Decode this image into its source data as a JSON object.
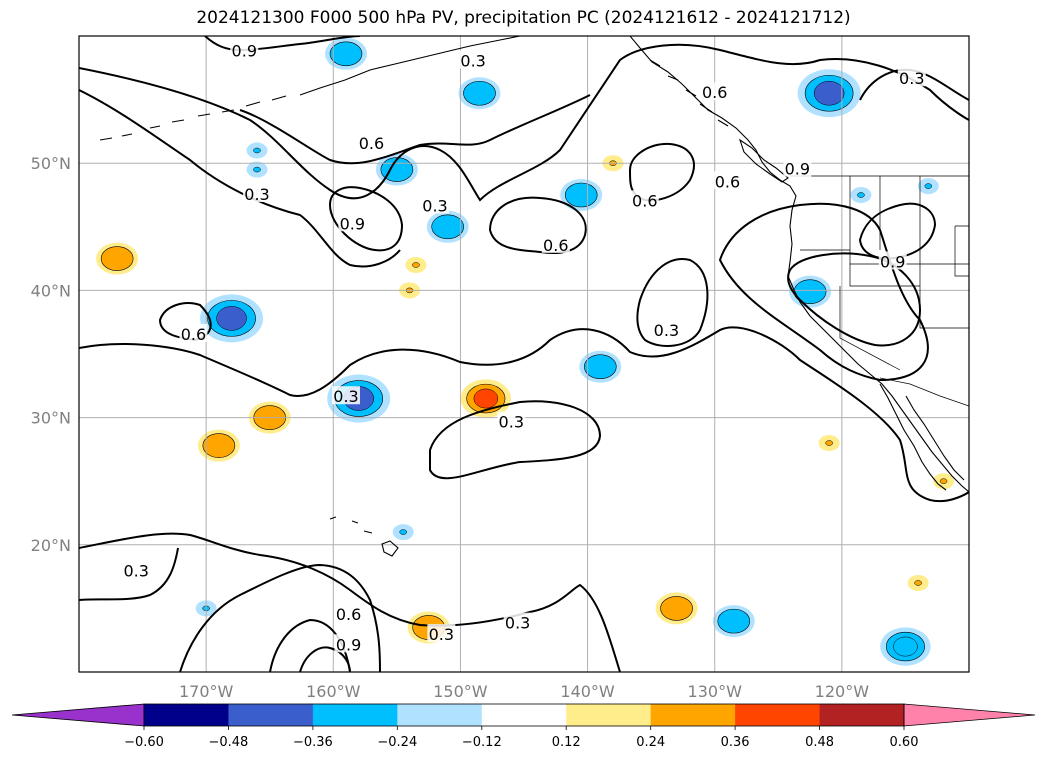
{
  "title": "2024121300 F000 500 hPa PV, precipitation PC (2024121612 - 2024121712)",
  "map": {
    "lon_range": [
      -180,
      -110
    ],
    "lat_range": [
      10,
      60
    ],
    "lat_labels": [
      "20°N",
      "30°N",
      "40°N",
      "50°N"
    ],
    "lon_labels": [
      "170°W",
      "160°W",
      "150°W",
      "140°W",
      "130°W",
      "120°W"
    ],
    "grid": true
  },
  "pv_contour_labels": [
    {
      "text": "0.9",
      "lon": -167,
      "lat": 58.8
    },
    {
      "text": "0.3",
      "lon": -149,
      "lat": 58
    },
    {
      "text": "0.6",
      "lon": -130,
      "lat": 55.5
    },
    {
      "text": "0.3",
      "lon": -114.5,
      "lat": 56.6
    },
    {
      "text": "0.6",
      "lon": -157,
      "lat": 51.5
    },
    {
      "text": "0.3",
      "lon": -166,
      "lat": 47.5
    },
    {
      "text": "0.9",
      "lon": -158.5,
      "lat": 45.2
    },
    {
      "text": "0.3",
      "lon": -152,
      "lat": 46.6
    },
    {
      "text": "0.6",
      "lon": -142.5,
      "lat": 43.5
    },
    {
      "text": "0.6",
      "lon": -135.5,
      "lat": 47
    },
    {
      "text": "0.6",
      "lon": -129,
      "lat": 48.5
    },
    {
      "text": "0.9",
      "lon": -123.5,
      "lat": 49.5
    },
    {
      "text": "0.9",
      "lon": -116,
      "lat": 42.2
    },
    {
      "text": "0.6",
      "lon": -171,
      "lat": 36.5
    },
    {
      "text": "0.3",
      "lon": -133.8,
      "lat": 36.8
    },
    {
      "text": "0.3",
      "lon": -159,
      "lat": 31.6
    },
    {
      "text": "0.3",
      "lon": -146,
      "lat": 29.6
    },
    {
      "text": "0.3",
      "lon": -175.5,
      "lat": 17.9
    },
    {
      "text": "0.6",
      "lon": -158.8,
      "lat": 14.5
    },
    {
      "text": "0.9",
      "lon": -158.8,
      "lat": 12.1
    },
    {
      "text": "0.3",
      "lon": -151.5,
      "lat": 12.9
    },
    {
      "text": "0.3",
      "lon": -145.5,
      "lat": 13.8
    }
  ],
  "precip_pc_features": [
    {
      "lon": -177,
      "lat": 42.5,
      "value": 0.24
    },
    {
      "lon": -168,
      "lat": 37.8,
      "value": -0.48
    },
    {
      "lon": -165,
      "lat": 30,
      "value": 0.24
    },
    {
      "lon": -169,
      "lat": 27.8,
      "value": 0.24
    },
    {
      "lon": -158,
      "lat": 31.5,
      "value": -0.48
    },
    {
      "lon": -155,
      "lat": 49.5,
      "value": -0.24
    },
    {
      "lon": -148.5,
      "lat": 55.5,
      "value": -0.24
    },
    {
      "lon": -151,
      "lat": 45,
      "value": -0.24
    },
    {
      "lon": -159,
      "lat": 58.6,
      "value": -0.24
    },
    {
      "lon": -148,
      "lat": 31.5,
      "value": 0.36
    },
    {
      "lon": -153.5,
      "lat": 42,
      "value": 0.12
    },
    {
      "lon": -154,
      "lat": 40,
      "value": 0.12
    },
    {
      "lon": -139,
      "lat": 34,
      "value": -0.24
    },
    {
      "lon": -140.5,
      "lat": 47.5,
      "value": -0.24
    },
    {
      "lon": -138,
      "lat": 50,
      "value": 0.12
    },
    {
      "lon": -121,
      "lat": 55.5,
      "value": -0.48
    },
    {
      "lon": -118.5,
      "lat": 47.5,
      "value": -0.12
    },
    {
      "lon": -113.2,
      "lat": 48.2,
      "value": -0.12
    },
    {
      "lon": -122.5,
      "lat": 39.9,
      "value": -0.24
    },
    {
      "lon": -133,
      "lat": 15,
      "value": 0.24
    },
    {
      "lon": -128.5,
      "lat": 14,
      "value": -0.24
    },
    {
      "lon": -115,
      "lat": 12,
      "value": -0.36
    },
    {
      "lon": -152.5,
      "lat": 13.5,
      "value": 0.24
    },
    {
      "lon": -121,
      "lat": 28,
      "value": 0.12
    },
    {
      "lon": -112,
      "lat": 25,
      "value": 0.12
    },
    {
      "lon": -114,
      "lat": 17,
      "value": 0.12
    },
    {
      "lon": -154.5,
      "lat": 21,
      "value": -0.12
    },
    {
      "lon": -170,
      "lat": 15,
      "value": -0.12
    },
    {
      "lon": -166,
      "lat": 49.5,
      "value": -0.12
    },
    {
      "lon": -166,
      "lat": 51,
      "value": -0.12
    }
  ],
  "colorbar": {
    "ticks": [
      "−0.60",
      "−0.48",
      "−0.36",
      "−0.24",
      "−0.12",
      "0.12",
      "0.24",
      "0.36",
      "0.48",
      "0.60"
    ],
    "colors": [
      "#9932cc",
      "#00008b",
      "#3a5fcd",
      "#00bfff",
      "#b0e2ff",
      "#ffffff",
      "#ffec8b",
      "#ffa500",
      "#ff4500",
      "#b22222",
      "#ff82ab"
    ],
    "extend": "both"
  }
}
